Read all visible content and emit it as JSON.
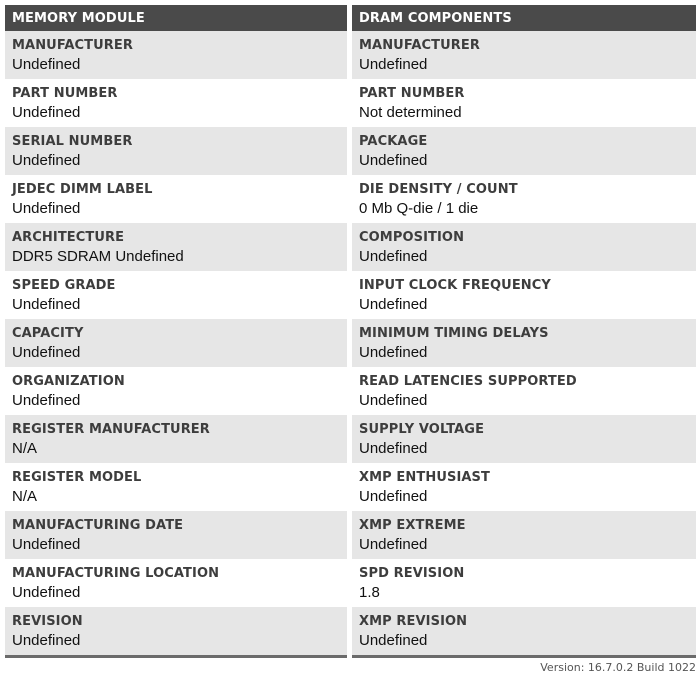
{
  "memory_module": {
    "header": "MEMORY MODULE",
    "rows": [
      {
        "label": "MANUFACTURER",
        "value": "Undefined"
      },
      {
        "label": "PART NUMBER",
        "value": "Undefined"
      },
      {
        "label": "SERIAL NUMBER",
        "value": "Undefined"
      },
      {
        "label": "JEDEC DIMM LABEL",
        "value": "Undefined"
      },
      {
        "label": "ARCHITECTURE",
        "value": "DDR5 SDRAM Undefined"
      },
      {
        "label": "SPEED GRADE",
        "value": "Undefined"
      },
      {
        "label": "CAPACITY",
        "value": "Undefined"
      },
      {
        "label": "ORGANIZATION",
        "value": "Undefined"
      },
      {
        "label": "REGISTER MANUFACTURER",
        "value": "N/A"
      },
      {
        "label": "REGISTER MODEL",
        "value": "N/A"
      },
      {
        "label": "MANUFACTURING DATE",
        "value": "Undefined"
      },
      {
        "label": "MANUFACTURING LOCATION",
        "value": "Undefined"
      },
      {
        "label": "REVISION",
        "value": "Undefined"
      }
    ]
  },
  "dram_components": {
    "header": "DRAM COMPONENTS",
    "rows": [
      {
        "label": "MANUFACTURER",
        "value": "Undefined"
      },
      {
        "label": "PART NUMBER",
        "value": "Not determined"
      },
      {
        "label": "PACKAGE",
        "value": "Undefined"
      },
      {
        "label": "DIE DENSITY / COUNT",
        "value": "0 Mb Q-die / 1 die"
      },
      {
        "label": "COMPOSITION",
        "value": "Undefined"
      },
      {
        "label": "INPUT CLOCK FREQUENCY",
        "value": "Undefined"
      },
      {
        "label": "MINIMUM TIMING DELAYS",
        "value": "Undefined"
      },
      {
        "label": "READ LATENCIES SUPPORTED",
        "value": "Undefined"
      },
      {
        "label": "SUPPLY VOLTAGE",
        "value": "Undefined"
      },
      {
        "label": "XMP ENTHUSIAST",
        "value": "Undefined"
      },
      {
        "label": "XMP EXTREME",
        "value": "Undefined"
      },
      {
        "label": "SPD REVISION",
        "value": "1.8"
      },
      {
        "label": "XMP REVISION",
        "value": "Undefined"
      }
    ]
  },
  "footer": {
    "version": "Version: 16.7.0.2 Build 1022"
  }
}
